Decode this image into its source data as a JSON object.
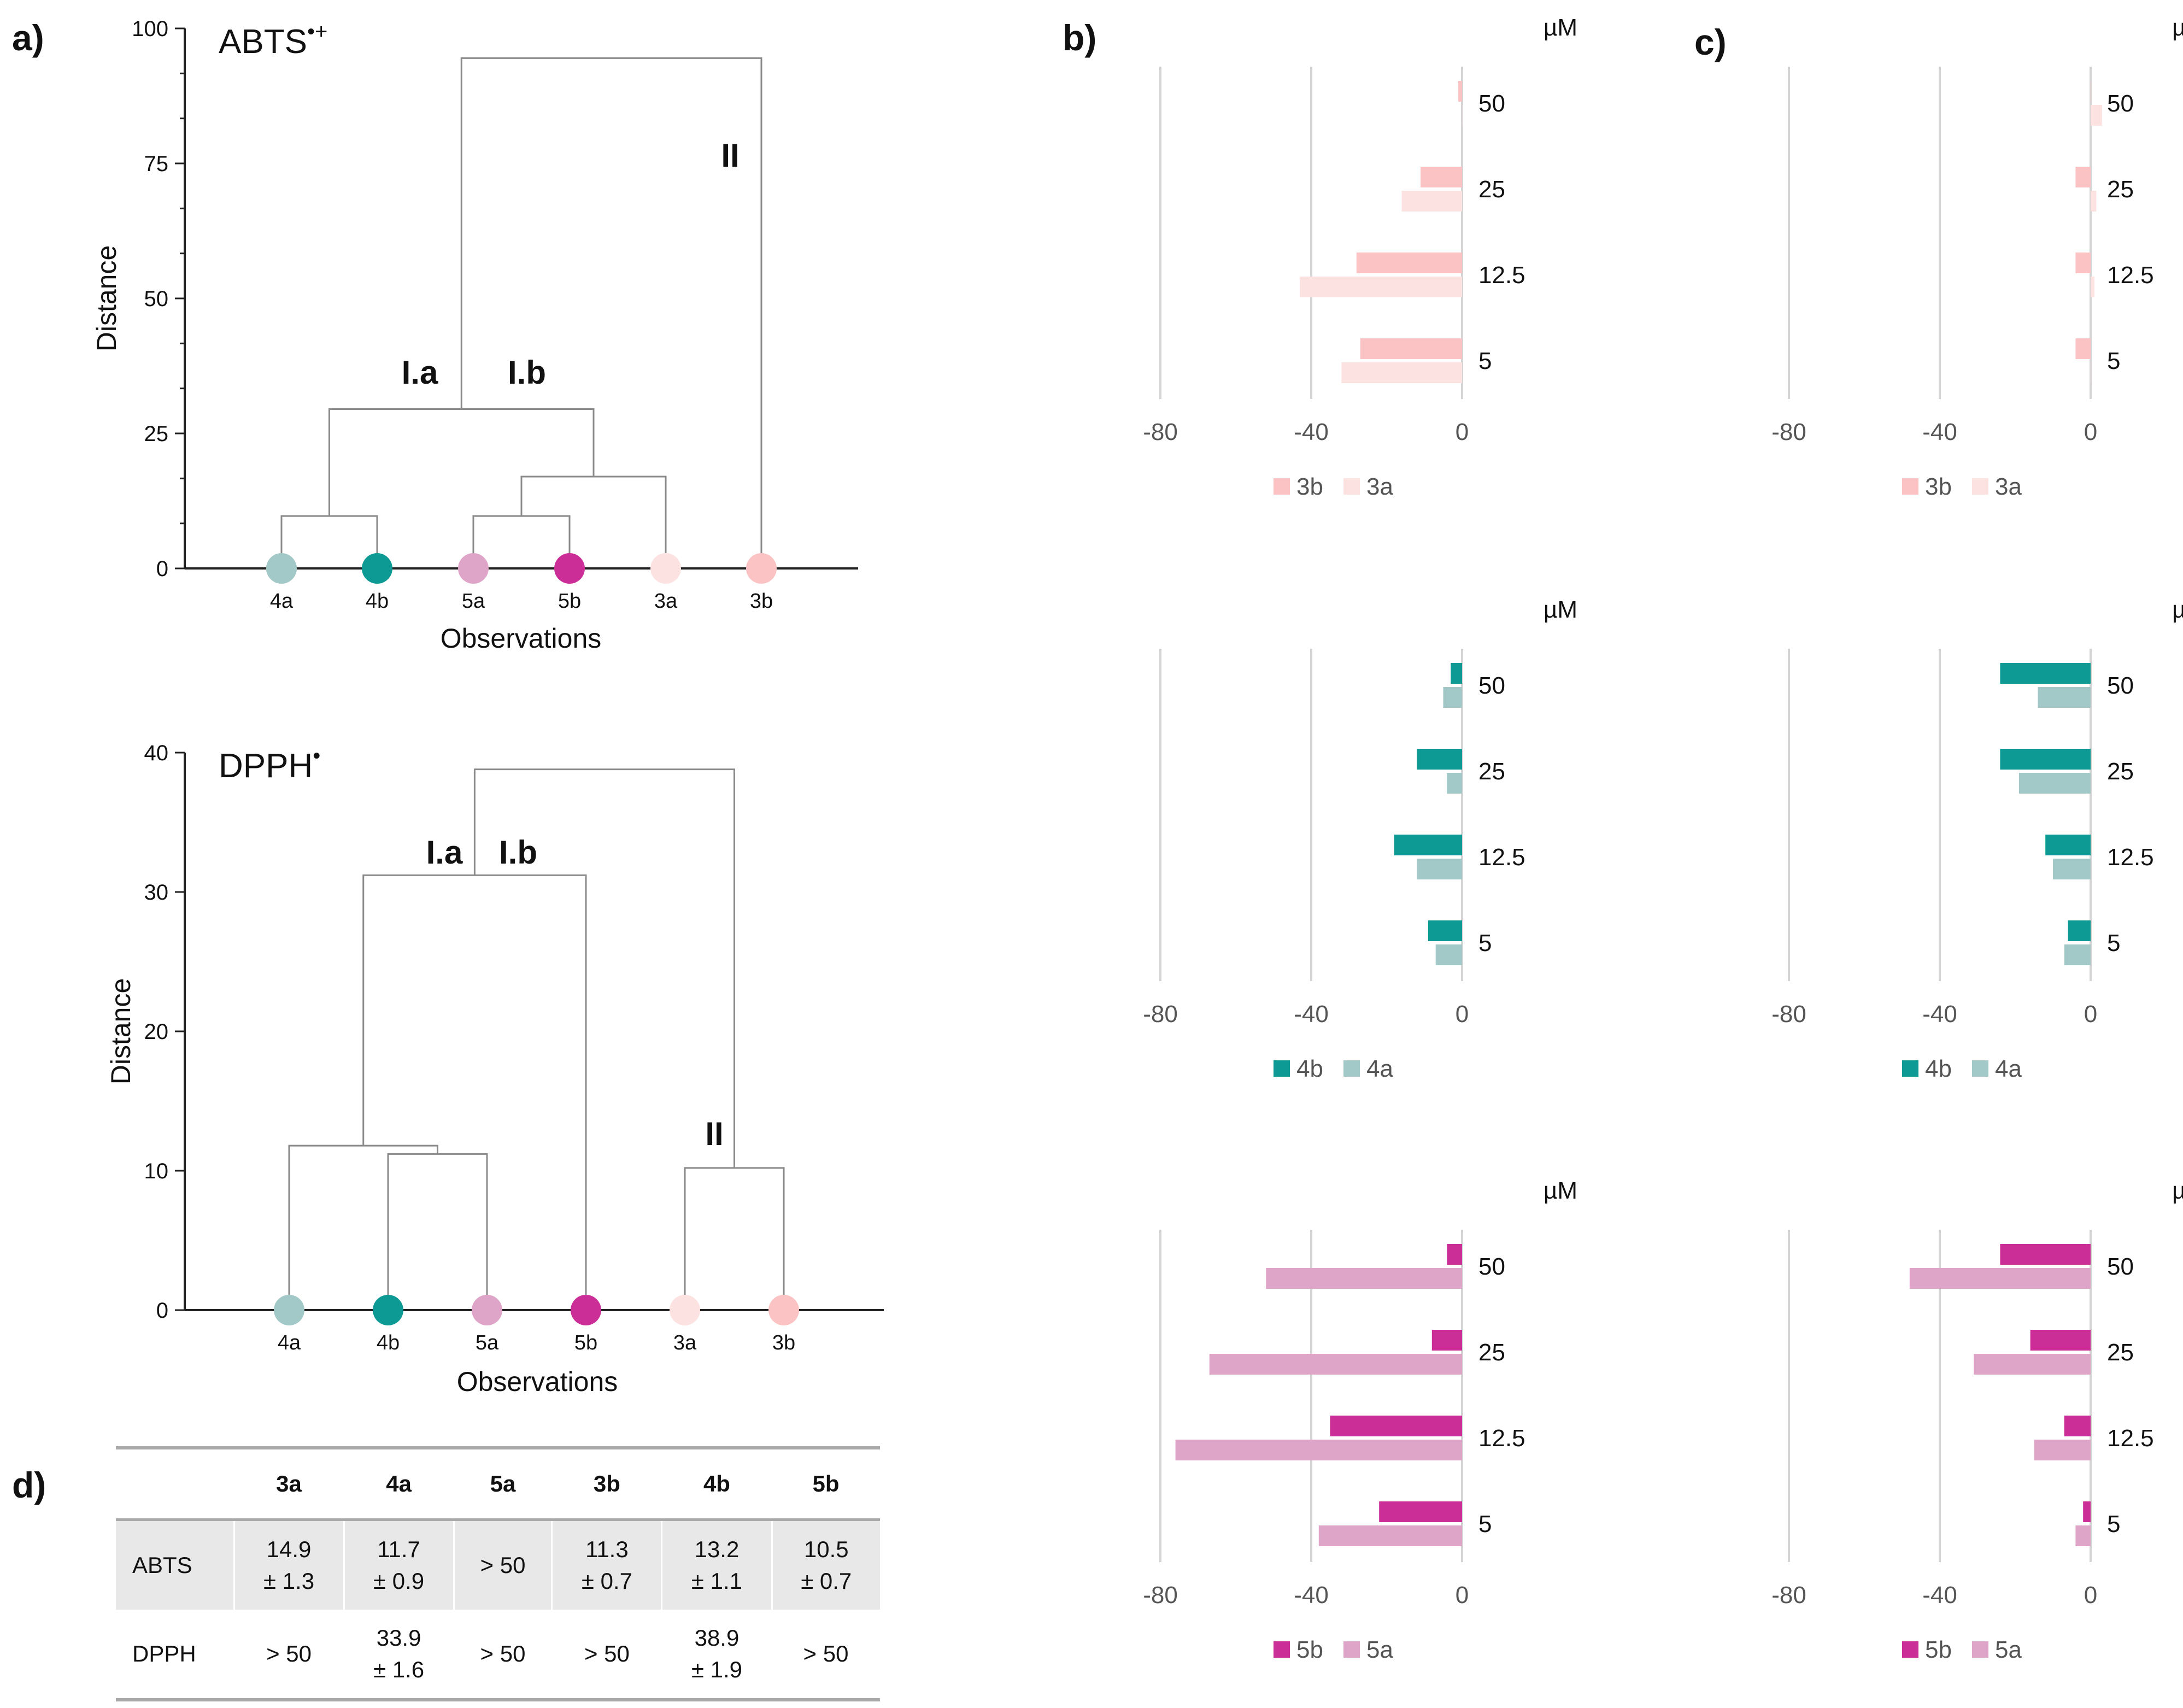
{
  "panel_labels": {
    "a": "a)",
    "b": "b)",
    "c": "c)",
    "d": "d)"
  },
  "colors": {
    "3a": "#fde2e2",
    "3b": "#fbc3c3",
    "4a": "#a2c9c7",
    "4b": "#0e9a94",
    "5a": "#dfa5c8",
    "5b": "#cc2e98"
  },
  "chart_data": [
    {
      "id": "dendro-abts",
      "type": "dendrogram",
      "title_main": "ABTS",
      "title_sup": "•+",
      "xlabel": "Observations",
      "ylabel": "Distance",
      "ylim": [
        0,
        100
      ],
      "yticks": [
        0,
        25,
        50,
        75,
        100
      ],
      "leaves": [
        "4a",
        "4b",
        "5a",
        "5b",
        "3a",
        "3b"
      ],
      "merges": [
        {
          "children": [
            "4a",
            "4b"
          ],
          "height": 9.7
        },
        {
          "children": [
            "5a",
            "5b"
          ],
          "height": 9.7
        },
        {
          "children": [
            "5a+5b",
            "3a"
          ],
          "height": 17.0
        },
        {
          "children": [
            "4a+4b",
            "5a+5b+3a"
          ],
          "height": 29.5
        },
        {
          "children": [
            "cluster-I",
            "3b"
          ],
          "height": 94.5
        }
      ],
      "clusters": [
        "I.a",
        "I.b",
        "II"
      ]
    },
    {
      "id": "dendro-dpph",
      "type": "dendrogram",
      "title_main": "DPPH",
      "title_sup": "•",
      "xlabel": "Observations",
      "ylabel": "Distance",
      "ylim": [
        0,
        40
      ],
      "yticks": [
        0,
        10,
        20,
        30,
        40
      ],
      "leaves": [
        "4a",
        "4b",
        "5a",
        "5b",
        "3a",
        "3b"
      ],
      "merges": [
        {
          "children": [
            "4b",
            "5a"
          ],
          "height": 11.2
        },
        {
          "children": [
            "4a",
            "4b+5a"
          ],
          "height": 11.8
        },
        {
          "children": [
            "3a",
            "3b"
          ],
          "height": 10.2
        },
        {
          "children": [
            "4a+4b+5a",
            "5b"
          ],
          "height": 31.2
        },
        {
          "children": [
            "cluster-I",
            "3a+3b"
          ],
          "height": 38.8
        }
      ],
      "clusters": [
        "I.a",
        "I.b",
        "II"
      ]
    },
    {
      "id": "bar-b-3",
      "type": "bar",
      "orientation": "horizontal",
      "unit": "µM",
      "categories": [
        "50",
        "25",
        "12.5",
        "5"
      ],
      "xlim": [
        -100,
        0
      ],
      "xticks": [
        -80,
        -40,
        0
      ],
      "series": [
        {
          "name": "3b",
          "values": [
            -1,
            -11,
            -28,
            -27
          ]
        },
        {
          "name": "3a",
          "values": [
            0,
            -16,
            -43,
            -32
          ]
        }
      ]
    },
    {
      "id": "bar-c-3",
      "type": "bar",
      "orientation": "horizontal",
      "unit": "µM",
      "categories": [
        "50",
        "25",
        "12.5",
        "5"
      ],
      "xlim": [
        -100,
        0
      ],
      "xticks": [
        -80,
        -40,
        0
      ],
      "series": [
        {
          "name": "3b",
          "values": [
            0,
            -4,
            -4,
            -4
          ]
        },
        {
          "name": "3a",
          "values": [
            3,
            1.5,
            1,
            0
          ]
        }
      ]
    },
    {
      "id": "bar-b-4",
      "type": "bar",
      "orientation": "horizontal",
      "unit": "µM",
      "categories": [
        "50",
        "25",
        "12.5",
        "5"
      ],
      "xlim": [
        -100,
        0
      ],
      "xticks": [
        -80,
        -40,
        0
      ],
      "series": [
        {
          "name": "4b",
          "values": [
            -3,
            -12,
            -18,
            -9
          ]
        },
        {
          "name": "4a",
          "values": [
            -5,
            -4,
            -12,
            -7
          ]
        }
      ]
    },
    {
      "id": "bar-c-4",
      "type": "bar",
      "orientation": "horizontal",
      "unit": "µM",
      "categories": [
        "50",
        "25",
        "12.5",
        "5"
      ],
      "xlim": [
        -100,
        0
      ],
      "xticks": [
        -80,
        -40,
        0
      ],
      "series": [
        {
          "name": "4b",
          "values": [
            -24,
            -24,
            -12,
            -6
          ]
        },
        {
          "name": "4a",
          "values": [
            -14,
            -19,
            -10,
            -7
          ]
        }
      ]
    },
    {
      "id": "bar-b-5",
      "type": "bar",
      "orientation": "horizontal",
      "unit": "µM",
      "categories": [
        "50",
        "25",
        "12.5",
        "5"
      ],
      "xlim": [
        -100,
        0
      ],
      "xticks": [
        -80,
        -40,
        0
      ],
      "series": [
        {
          "name": "5b",
          "values": [
            -4,
            -8,
            -35,
            -22
          ]
        },
        {
          "name": "5a",
          "values": [
            -52,
            -67,
            -76,
            -38
          ]
        }
      ]
    },
    {
      "id": "bar-c-5",
      "type": "bar",
      "orientation": "horizontal",
      "unit": "µM",
      "categories": [
        "50",
        "25",
        "12.5",
        "5"
      ],
      "xlim": [
        -100,
        0
      ],
      "xticks": [
        -80,
        -40,
        0
      ],
      "series": [
        {
          "name": "5b",
          "values": [
            -24,
            -16,
            -7,
            -2
          ]
        },
        {
          "name": "5a",
          "values": [
            -48,
            -31,
            -15,
            -4
          ]
        }
      ]
    }
  ],
  "table": {
    "headers": [
      "",
      "3a",
      "4a",
      "5a",
      "3b",
      "4b",
      "5b"
    ],
    "rows": [
      {
        "label": "ABTS",
        "cells": [
          [
            "14.9",
            "± 1.3"
          ],
          [
            "11.7",
            "± 0.9"
          ],
          [
            "> 50",
            ""
          ],
          [
            "11.3",
            "± 0.7"
          ],
          [
            "13.2",
            "± 1.1"
          ],
          [
            "10.5",
            "± 0.7"
          ]
        ]
      },
      {
        "label": "DPPH",
        "cells": [
          [
            "> 50",
            ""
          ],
          [
            "33.9",
            "± 1.6"
          ],
          [
            "> 50",
            ""
          ],
          [
            "> 50",
            ""
          ],
          [
            "38.9",
            "± 1.9"
          ],
          [
            "> 50",
            ""
          ]
        ]
      }
    ]
  }
}
